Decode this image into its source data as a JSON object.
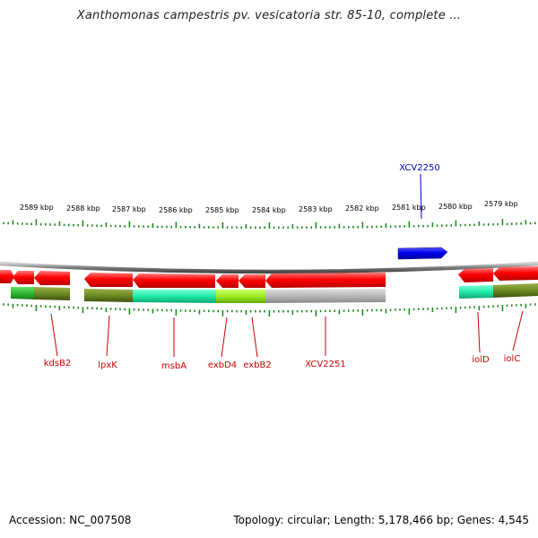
{
  "title": "Xanthomonas campestris pv. vesicatoria str. 85-10, complete ...",
  "footer": {
    "accession": "Accession: NC_007508",
    "summary": "Topology: circular; Length: 5,178,466 bp; Genes: 4,545"
  },
  "ruler": {
    "labels": [
      "2589 kbp",
      "2588 kbp",
      "2587 kbp",
      "2586 kbp",
      "2585 kbp",
      "2584 kbp",
      "2583 kbp",
      "2582 kbp",
      "2581 kbp",
      "2580 kbp",
      "2579 kbp"
    ]
  },
  "colors": {
    "forward_gene": "#0000e0",
    "reverse_gene": "#ee0000",
    "tick": "#228822",
    "backbone": "#8a8a8a",
    "label_forward": "#0000aa",
    "label_reverse": "#cc0000"
  },
  "genes_forward": [
    {
      "name": "XCV2250"
    }
  ],
  "genes_reverse": [
    {
      "name": "kdsB2"
    },
    {
      "name": "lpxK"
    },
    {
      "name": "msbA"
    },
    {
      "name": "exbD4"
    },
    {
      "name": "exbB2"
    },
    {
      "name": "XCV2251"
    },
    {
      "name": "iolD"
    },
    {
      "name": "iolC"
    }
  ]
}
